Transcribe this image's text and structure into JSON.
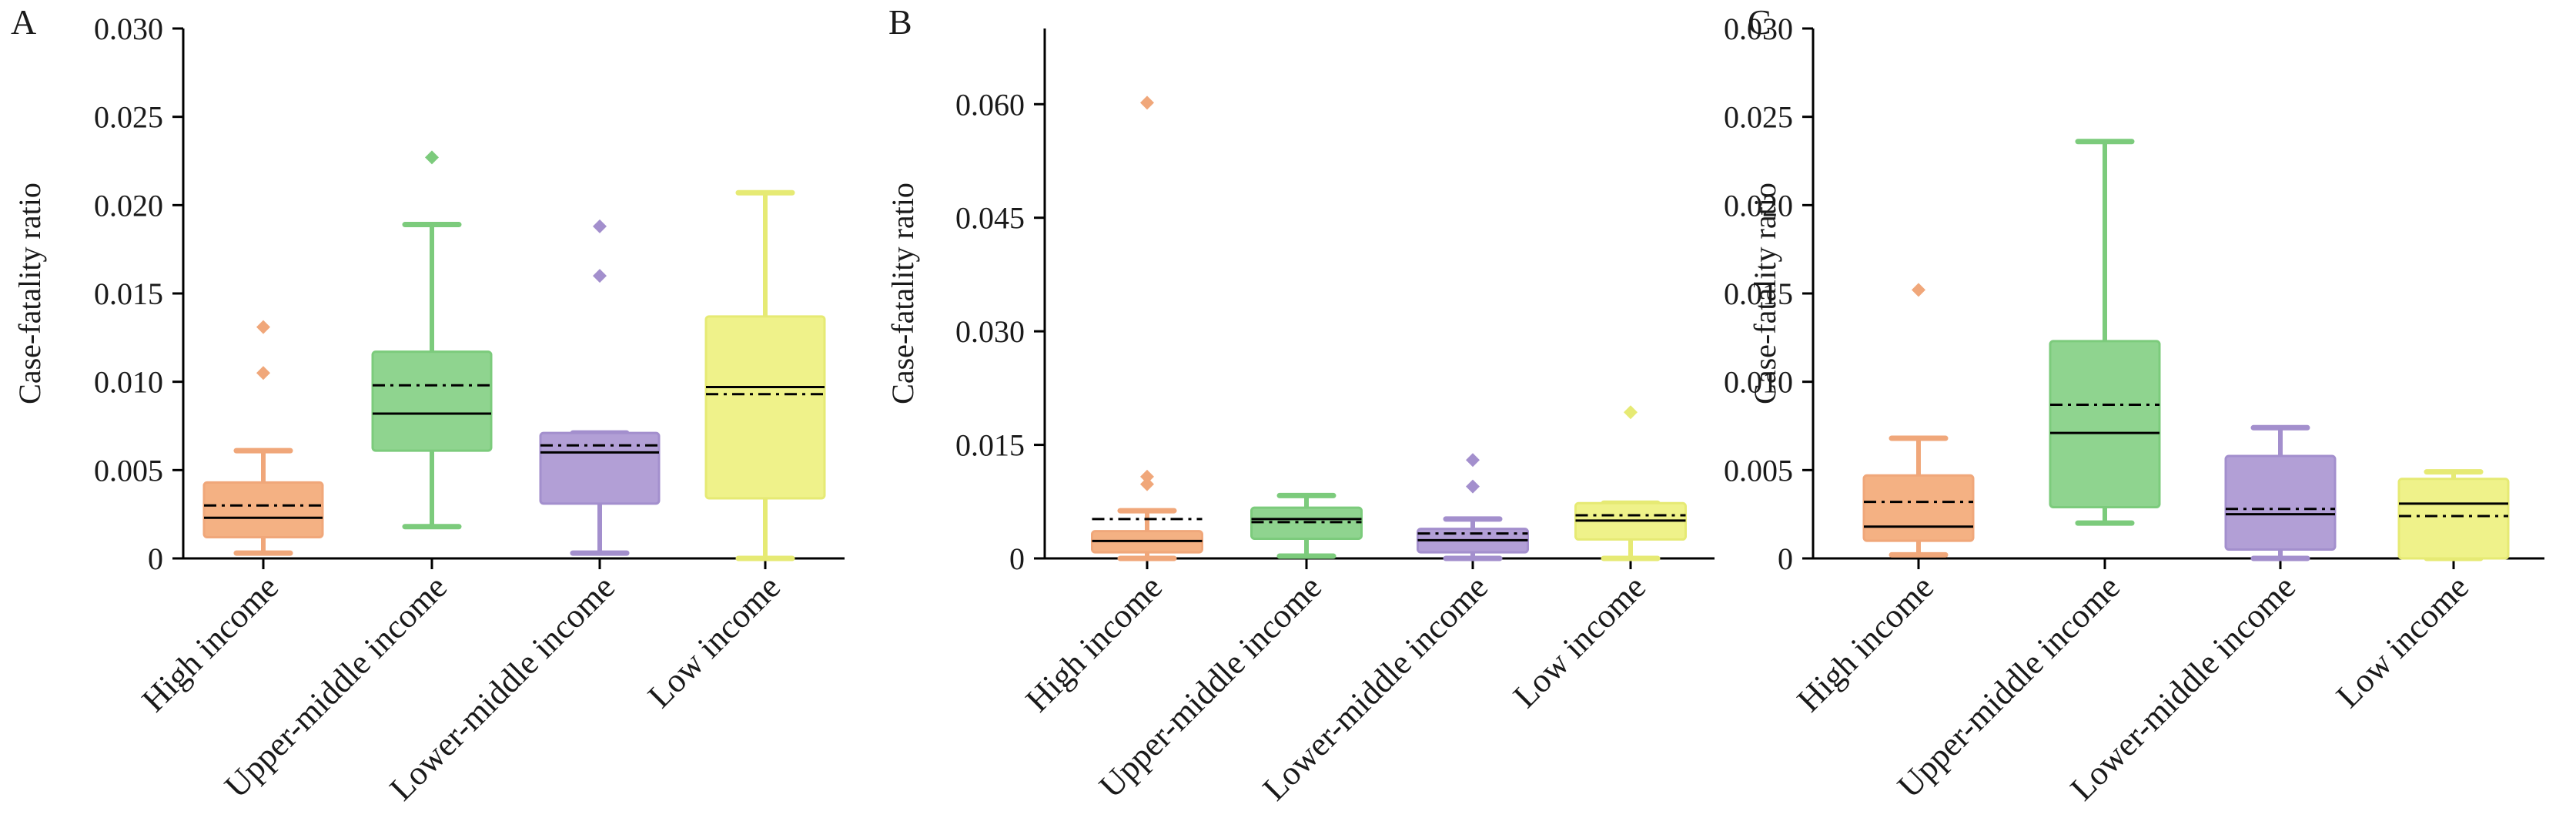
{
  "chart_data": [
    {
      "panel": "A",
      "type": "box",
      "ylabel": "Case-fatality ratio",
      "ylim": [
        0,
        0.03
      ],
      "yticks": [
        "0",
        "0.005",
        "0.010",
        "0.015",
        "0.020",
        "0.025",
        "0.030"
      ],
      "ytick_values": [
        0,
        0.005,
        0.01,
        0.015,
        0.02,
        0.025,
        0.03
      ],
      "categories": [
        "High income",
        "Upper-middle income",
        "Lower-middle income",
        "Low income"
      ],
      "boxes": [
        {
          "whisker_low": 0.0003,
          "q1": 0.0012,
          "median": 0.0023,
          "mean": 0.003,
          "q3": 0.0043,
          "whisker_high": 0.0061,
          "outliers": [
            0.0105,
            0.0131
          ]
        },
        {
          "whisker_low": 0.0018,
          "q1": 0.0061,
          "median": 0.0082,
          "mean": 0.0098,
          "q3": 0.0117,
          "whisker_high": 0.0189,
          "outliers": [
            0.0227
          ]
        },
        {
          "whisker_low": 0.0003,
          "q1": 0.0031,
          "median": 0.006,
          "mean": 0.0064,
          "q3": 0.0071,
          "whisker_high": 0.0071,
          "outliers": [
            0.016,
            0.0188
          ]
        },
        {
          "whisker_low": 0.0,
          "q1": 0.0034,
          "median": 0.0097,
          "mean": 0.0093,
          "q3": 0.0137,
          "whisker_high": 0.0207,
          "outliers": []
        }
      ]
    },
    {
      "panel": "B",
      "type": "box",
      "ylabel": "Case-fatality ratio",
      "ylim": [
        0,
        0.07
      ],
      "yticks": [
        "0",
        "0.015",
        "0.030",
        "0.045",
        "0.060"
      ],
      "ytick_values": [
        0,
        0.015,
        0.03,
        0.045,
        0.06
      ],
      "categories": [
        "High income",
        "Upper-middle income",
        "Lower-middle income",
        "Low income"
      ],
      "boxes": [
        {
          "whisker_low": 0.0,
          "q1": 0.0008,
          "median": 0.0023,
          "mean": 0.0052,
          "q3": 0.0036,
          "whisker_high": 0.0063,
          "outliers": [
            0.0098,
            0.0108,
            0.0602
          ]
        },
        {
          "whisker_low": 0.0003,
          "q1": 0.0026,
          "median": 0.0052,
          "mean": 0.0048,
          "q3": 0.0067,
          "whisker_high": 0.0083,
          "outliers": []
        },
        {
          "whisker_low": 0.0,
          "q1": 0.0008,
          "median": 0.0024,
          "mean": 0.0033,
          "q3": 0.0039,
          "whisker_high": 0.0052,
          "outliers": [
            0.0095,
            0.013
          ]
        },
        {
          "whisker_low": 0.0,
          "q1": 0.0025,
          "median": 0.005,
          "mean": 0.0057,
          "q3": 0.0073,
          "whisker_high": 0.0073,
          "outliers": [
            0.0193
          ]
        }
      ]
    },
    {
      "panel": "C",
      "type": "box",
      "ylabel": "Case-fatality ratio",
      "ylim": [
        0,
        0.03
      ],
      "yticks": [
        "0",
        "0.005",
        "0.010",
        "0.015",
        "0.020",
        "0.025",
        "0.030"
      ],
      "ytick_values": [
        0,
        0.005,
        0.01,
        0.015,
        0.02,
        0.025,
        0.03
      ],
      "categories": [
        "High income",
        "Upper-middle income",
        "Lower-middle income",
        "Low income"
      ],
      "boxes": [
        {
          "whisker_low": 0.0002,
          "q1": 0.001,
          "median": 0.0018,
          "mean": 0.0032,
          "q3": 0.0047,
          "whisker_high": 0.0068,
          "outliers": [
            0.0152
          ]
        },
        {
          "whisker_low": 0.002,
          "q1": 0.0029,
          "median": 0.0071,
          "mean": 0.0087,
          "q3": 0.0123,
          "whisker_high": 0.0236,
          "outliers": []
        },
        {
          "whisker_low": 0.0,
          "q1": 0.0005,
          "median": 0.0025,
          "mean": 0.0028,
          "q3": 0.0058,
          "whisker_high": 0.0074,
          "outliers": []
        },
        {
          "whisker_low": 0.0,
          "q1": 0.0,
          "median": 0.0031,
          "mean": 0.0024,
          "q3": 0.0045,
          "whisker_high": 0.0049,
          "outliers": []
        }
      ]
    }
  ],
  "colors": {
    "fill": [
      "#f4b183",
      "#8fd48f",
      "#b29fd6",
      "#eff28a"
    ],
    "stroke": [
      "#f0a77a",
      "#7ccb7c",
      "#a38fcd",
      "#e6ea74"
    ],
    "median": "#000000",
    "mean": "#000000"
  },
  "legend_note": {
    "median_line": "solid",
    "mean_line": "dash-dot"
  }
}
